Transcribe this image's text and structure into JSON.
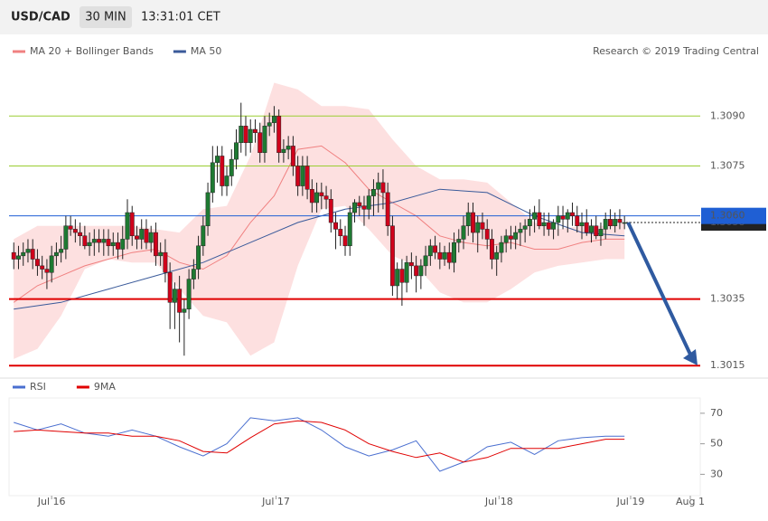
{
  "header": {
    "symbol": "USD/CAD",
    "interval": "30 MIN",
    "time": "13:31:01 CET"
  },
  "chart_data": [
    {
      "type": "candlestick",
      "attribution": "Research © 2019 Trading Central",
      "xlim": [
        -1,
        145
      ],
      "ylim": [
        1.3008,
        1.3114
      ],
      "up_color": "#1e7a32",
      "down_color": "#d0021b",
      "candles": [
        [
          1.3049,
          1.3052,
          1.3044,
          1.3047
        ],
        [
          1.3047,
          1.3051,
          1.3044,
          1.3048
        ],
        [
          1.3048,
          1.3052,
          1.3045,
          1.3049
        ],
        [
          1.3049,
          1.3053,
          1.3046,
          1.305
        ],
        [
          1.305,
          1.3053,
          1.3044,
          1.3047
        ],
        [
          1.3047,
          1.305,
          1.3042,
          1.3045
        ],
        [
          1.3045,
          1.3048,
          1.3041,
          1.3044
        ],
        [
          1.3044,
          1.3047,
          1.3038,
          1.3043
        ],
        [
          1.3043,
          1.3051,
          1.304,
          1.3048
        ],
        [
          1.3048,
          1.3052,
          1.3045,
          1.3049
        ],
        [
          1.3049,
          1.3054,
          1.3046,
          1.305
        ],
        [
          1.305,
          1.306,
          1.3047,
          1.3057
        ],
        [
          1.3057,
          1.306,
          1.3054,
          1.3056
        ],
        [
          1.3056,
          1.3059,
          1.3052,
          1.3055
        ],
        [
          1.3055,
          1.3058,
          1.3051,
          1.3054
        ],
        [
          1.3054,
          1.3057,
          1.305,
          1.3051
        ],
        [
          1.3051,
          1.3055,
          1.3048,
          1.3052
        ],
        [
          1.3052,
          1.3056,
          1.3048,
          1.3053
        ],
        [
          1.3053,
          1.3056,
          1.3049,
          1.3052
        ],
        [
          1.3052,
          1.3056,
          1.3048,
          1.3053
        ],
        [
          1.3053,
          1.3056,
          1.3048,
          1.3051
        ],
        [
          1.3051,
          1.3055,
          1.3048,
          1.3052
        ],
        [
          1.3052,
          1.3055,
          1.3047,
          1.305
        ],
        [
          1.305,
          1.3057,
          1.3047,
          1.3053
        ],
        [
          1.3053,
          1.3065,
          1.305,
          1.3061
        ],
        [
          1.3061,
          1.3063,
          1.3051,
          1.3054
        ],
        [
          1.3054,
          1.3057,
          1.305,
          1.3053
        ],
        [
          1.3053,
          1.3059,
          1.305,
          1.3056
        ],
        [
          1.3056,
          1.3059,
          1.305,
          1.3052
        ],
        [
          1.3052,
          1.3057,
          1.3049,
          1.3055
        ],
        [
          1.3055,
          1.3058,
          1.3045,
          1.3048
        ],
        [
          1.3048,
          1.3052,
          1.3045,
          1.3049
        ],
        [
          1.3049,
          1.3053,
          1.304,
          1.3043
        ],
        [
          1.3043,
          1.3046,
          1.3026,
          1.3034
        ],
        [
          1.3034,
          1.304,
          1.3026,
          1.3038
        ],
        [
          1.3038,
          1.3042,
          1.3022,
          1.3031
        ],
        [
          1.3031,
          1.3035,
          1.3018,
          1.3032
        ],
        [
          1.3032,
          1.3044,
          1.3029,
          1.3041
        ],
        [
          1.3041,
          1.3047,
          1.3038,
          1.3044
        ],
        [
          1.3044,
          1.3054,
          1.3041,
          1.3051
        ],
        [
          1.3051,
          1.306,
          1.3048,
          1.3057
        ],
        [
          1.3057,
          1.307,
          1.3054,
          1.3067
        ],
        [
          1.3067,
          1.3081,
          1.3064,
          1.3076
        ],
        [
          1.3076,
          1.3081,
          1.307,
          1.3078
        ],
        [
          1.3078,
          1.3081,
          1.3066,
          1.3069
        ],
        [
          1.3069,
          1.3075,
          1.3066,
          1.3072
        ],
        [
          1.3072,
          1.308,
          1.3069,
          1.3077
        ],
        [
          1.3077,
          1.3086,
          1.3074,
          1.3082
        ],
        [
          1.3082,
          1.3094,
          1.3079,
          1.3087
        ],
        [
          1.3087,
          1.309,
          1.3078,
          1.3082
        ],
        [
          1.3082,
          1.3089,
          1.3079,
          1.3086
        ],
        [
          1.3086,
          1.3089,
          1.3082,
          1.3085
        ],
        [
          1.3085,
          1.3088,
          1.3076,
          1.3079
        ],
        [
          1.3079,
          1.309,
          1.3076,
          1.3087
        ],
        [
          1.3087,
          1.3091,
          1.3084,
          1.3088
        ],
        [
          1.3088,
          1.3093,
          1.3085,
          1.309
        ],
        [
          1.309,
          1.3092,
          1.3076,
          1.3079
        ],
        [
          1.3079,
          1.3083,
          1.3076,
          1.308
        ],
        [
          1.308,
          1.3084,
          1.3077,
          1.3081
        ],
        [
          1.3081,
          1.3084,
          1.3072,
          1.3075
        ],
        [
          1.3075,
          1.3078,
          1.3066,
          1.3069
        ],
        [
          1.3069,
          1.3078,
          1.3066,
          1.3075
        ],
        [
          1.3075,
          1.3078,
          1.3065,
          1.3068
        ],
        [
          1.3068,
          1.3071,
          1.3061,
          1.3064
        ],
        [
          1.3064,
          1.307,
          1.3061,
          1.3067
        ],
        [
          1.3067,
          1.307,
          1.3062,
          1.3066
        ],
        [
          1.3066,
          1.3069,
          1.3062,
          1.3065
        ],
        [
          1.3065,
          1.3068,
          1.3055,
          1.3058
        ],
        [
          1.3058,
          1.3061,
          1.305,
          1.3056
        ],
        [
          1.3056,
          1.3059,
          1.3051,
          1.3054
        ],
        [
          1.3054,
          1.3057,
          1.3048,
          1.3051
        ],
        [
          1.3051,
          1.3063,
          1.3048,
          1.3061
        ],
        [
          1.3061,
          1.3065,
          1.3058,
          1.3064
        ],
        [
          1.3064,
          1.3066,
          1.306,
          1.3063
        ],
        [
          1.3063,
          1.3066,
          1.3057,
          1.3062
        ],
        [
          1.3062,
          1.3068,
          1.3059,
          1.3066
        ],
        [
          1.3066,
          1.3071,
          1.306,
          1.3068
        ],
        [
          1.3068,
          1.3073,
          1.3061,
          1.307
        ],
        [
          1.307,
          1.3074,
          1.3062,
          1.3067
        ],
        [
          1.3067,
          1.307,
          1.3054,
          1.3057
        ],
        [
          1.3057,
          1.306,
          1.3036,
          1.3039
        ],
        [
          1.3039,
          1.3046,
          1.3035,
          1.3044
        ],
        [
          1.3044,
          1.3047,
          1.3033,
          1.304
        ],
        [
          1.304,
          1.3048,
          1.3037,
          1.3046
        ],
        [
          1.3046,
          1.3049,
          1.3041,
          1.3045
        ],
        [
          1.3045,
          1.3048,
          1.3037,
          1.3042
        ],
        [
          1.3042,
          1.3047,
          1.3038,
          1.3045
        ],
        [
          1.3045,
          1.3051,
          1.3042,
          1.3048
        ],
        [
          1.3048,
          1.3053,
          1.3045,
          1.3051
        ],
        [
          1.3051,
          1.3054,
          1.3047,
          1.3049
        ],
        [
          1.3049,
          1.3052,
          1.3044,
          1.3047
        ],
        [
          1.3047,
          1.3051,
          1.3045,
          1.3049
        ],
        [
          1.3049,
          1.3052,
          1.3044,
          1.3046
        ],
        [
          1.3046,
          1.3055,
          1.3043,
          1.3052
        ],
        [
          1.3052,
          1.3056,
          1.3049,
          1.3053
        ],
        [
          1.3053,
          1.306,
          1.305,
          1.3057
        ],
        [
          1.3057,
          1.3064,
          1.3054,
          1.3061
        ],
        [
          1.3061,
          1.3064,
          1.3052,
          1.3055
        ],
        [
          1.3055,
          1.306,
          1.3049,
          1.3058
        ],
        [
          1.3058,
          1.3061,
          1.3053,
          1.3056
        ],
        [
          1.3056,
          1.3059,
          1.305,
          1.3053
        ],
        [
          1.3053,
          1.3056,
          1.3044,
          1.3047
        ],
        [
          1.3047,
          1.3051,
          1.3042,
          1.3049
        ],
        [
          1.3049,
          1.3054,
          1.3046,
          1.3052
        ],
        [
          1.3052,
          1.3056,
          1.3049,
          1.3054
        ],
        [
          1.3054,
          1.3057,
          1.305,
          1.3053
        ],
        [
          1.3053,
          1.3057,
          1.305,
          1.3055
        ],
        [
          1.3055,
          1.3058,
          1.3051,
          1.3056
        ],
        [
          1.3056,
          1.3059,
          1.3052,
          1.3057
        ],
        [
          1.3057,
          1.3062,
          1.3054,
          1.3059
        ],
        [
          1.3059,
          1.3063,
          1.3055,
          1.3061
        ],
        [
          1.3061,
          1.3065,
          1.3056,
          1.3057
        ],
        [
          1.3057,
          1.3061,
          1.3054,
          1.3058
        ],
        [
          1.3058,
          1.3061,
          1.3054,
          1.3056
        ],
        [
          1.3056,
          1.3059,
          1.3053,
          1.3058
        ],
        [
          1.3058,
          1.3063,
          1.3054,
          1.306
        ],
        [
          1.306,
          1.3063,
          1.3056,
          1.3059
        ],
        [
          1.3059,
          1.3062,
          1.3055,
          1.3061
        ],
        [
          1.3061,
          1.3064,
          1.3057,
          1.306
        ],
        [
          1.306,
          1.3063,
          1.3055,
          1.3057
        ],
        [
          1.3057,
          1.3061,
          1.3053,
          1.3058
        ],
        [
          1.3058,
          1.3062,
          1.3054,
          1.3055
        ],
        [
          1.3055,
          1.3059,
          1.3052,
          1.3057
        ],
        [
          1.3057,
          1.306,
          1.3053,
          1.3054
        ],
        [
          1.3054,
          1.3058,
          1.3051,
          1.3056
        ],
        [
          1.3056,
          1.3061,
          1.3053,
          1.3059
        ],
        [
          1.3059,
          1.3062,
          1.3056,
          1.3057
        ],
        [
          1.3057,
          1.3061,
          1.3055,
          1.3059
        ],
        [
          1.3059,
          1.3062,
          1.3056,
          1.3058
        ],
        [
          1.3058,
          1.306,
          1.3056,
          1.3058
        ]
      ],
      "overlays": [
        {
          "name": "MA 20 + Bollinger Bands",
          "color": "#f08080",
          "band_color": "#fde0e0",
          "x": [
            0,
            5,
            10,
            15,
            20,
            25,
            30,
            35,
            40,
            45,
            50,
            55,
            60,
            65,
            70,
            75,
            80,
            85,
            90,
            95,
            100,
            105,
            110,
            115,
            120,
            125,
            129
          ],
          "values": [
            1.3034,
            1.3039,
            1.3042,
            1.3045,
            1.3047,
            1.3049,
            1.305,
            1.3046,
            1.3044,
            1.3048,
            1.3058,
            1.3066,
            1.308,
            1.3081,
            1.3076,
            1.3068,
            1.3064,
            1.306,
            1.3054,
            1.3052,
            1.3051,
            1.3052,
            1.305,
            1.305,
            1.3052,
            1.3053,
            1.3053
          ],
          "upper": [
            1.3053,
            1.3057,
            1.3057,
            1.3057,
            1.3057,
            1.3057,
            1.3056,
            1.3055,
            1.3062,
            1.3063,
            1.3078,
            1.31,
            1.3098,
            1.3093,
            1.3093,
            1.3092,
            1.3083,
            1.3075,
            1.3071,
            1.3071,
            1.307,
            1.3064,
            1.3058,
            1.3056,
            1.3057,
            1.3057,
            1.3058
          ],
          "lower": [
            1.3017,
            1.302,
            1.303,
            1.3044,
            1.3047,
            1.3046,
            1.3046,
            1.3038,
            1.303,
            1.3028,
            1.3018,
            1.3022,
            1.3045,
            1.3062,
            1.3063,
            1.3056,
            1.3048,
            1.3045,
            1.3037,
            1.3034,
            1.3034,
            1.3038,
            1.3043,
            1.3045,
            1.3046,
            1.3047,
            1.3047
          ]
        },
        {
          "name": "MA 50",
          "color": "#3a5a9a",
          "x": [
            0,
            10,
            20,
            30,
            40,
            50,
            60,
            70,
            80,
            90,
            100,
            110,
            120,
            129
          ],
          "values": [
            1.3032,
            1.3034,
            1.3038,
            1.3042,
            1.3046,
            1.3052,
            1.3058,
            1.3062,
            1.3064,
            1.3068,
            1.3067,
            1.306,
            1.3055,
            1.3054
          ]
        }
      ],
      "levels": [
        {
          "value": 1.309,
          "label": "1.3090",
          "color": "#9acd32"
        },
        {
          "value": 1.3075,
          "color": "#9acd32"
        },
        {
          "value": 1.3058,
          "color": "#222222"
        },
        {
          "value": 1.306,
          "label": "1.3060",
          "color": "#1f5fd4"
        },
        {
          "value": 1.3035,
          "color": "#e00000"
        },
        {
          "value": 1.3015,
          "color": "#e00000"
        }
      ]
    },
    {
      "type": "line",
      "xlim": [
        -1,
        145
      ],
      "ylim": [
        16,
        80
      ],
      "yticks": [
        30,
        50,
        70
      ],
      "xticks": [
        {
          "value": 8,
          "label": "Jul 16"
        },
        {
          "value": 55.4,
          "label": "Jul 17"
        },
        {
          "value": 102.5,
          "label": "Jul 18"
        },
        {
          "value": 130.3,
          "label": "Jul 19"
        },
        {
          "value": 142.9,
          "label": "Aug 1"
        }
      ],
      "x": [
        0,
        5,
        10,
        15,
        20,
        25,
        30,
        35,
        40,
        45,
        50,
        55,
        60,
        65,
        70,
        75,
        80,
        85,
        90,
        95,
        100,
        105,
        110,
        115,
        120,
        125,
        129
      ],
      "series": [
        {
          "name": "RSI",
          "color": "#4a6fd0",
          "values": [
            64,
            59,
            63,
            57,
            55,
            59,
            55,
            48,
            42,
            50,
            67,
            65,
            67,
            59,
            48,
            42,
            46,
            52,
            32,
            38,
            48,
            51,
            43,
            52,
            54,
            55,
            55
          ]
        },
        {
          "name": "9MA",
          "color": "#e00000",
          "values": [
            58,
            59,
            58,
            57,
            57,
            55,
            55,
            52,
            45,
            44,
            54,
            63,
            65,
            64,
            59,
            50,
            45,
            41,
            44,
            38,
            41,
            47,
            47,
            47,
            50,
            53,
            53
          ]
        }
      ]
    }
  ]
}
